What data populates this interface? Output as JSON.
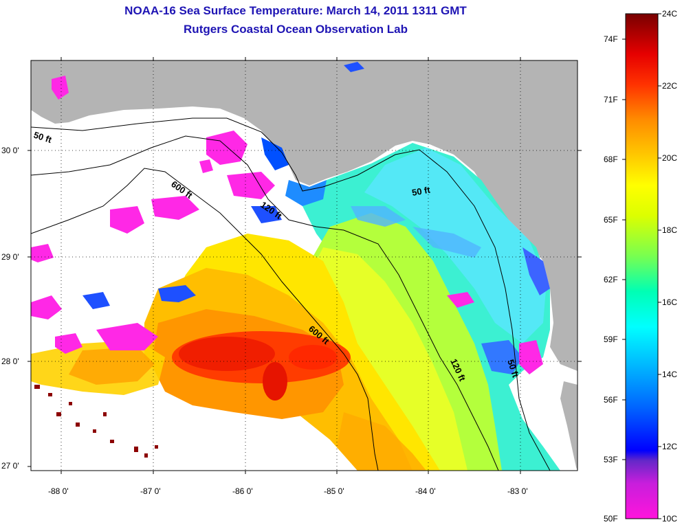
{
  "header": {
    "title": "NOAA-16 Sea Surface Temperature:  March 14, 2011 1311 GMT",
    "subtitle": "Rutgers Coastal Ocean Observation Lab"
  },
  "map": {
    "land_color": "#b4b4b4",
    "no_data_color": "#ffffff",
    "lat_labels": [
      "30 0'",
      "29 0'",
      "28 0'",
      "27 0'"
    ],
    "lon_labels": [
      "-88 0'",
      "-87 0'",
      "-86 0'",
      "-85 0'",
      "-84 0'",
      "-83 0'"
    ],
    "contour_labels": [
      "50 ft",
      "600 ft",
      "120 ft",
      "50 ft",
      "600 ft",
      "120 ft",
      "50 ft"
    ]
  },
  "colorbar": {
    "fahrenheit_labels": [
      "74F",
      "71F",
      "68F",
      "65F",
      "62F",
      "59F",
      "56F",
      "53F",
      "50F"
    ],
    "celsius_labels": [
      "24C",
      "22C",
      "20C",
      "18C",
      "16C",
      "14C",
      "12C",
      "10C"
    ],
    "range_c": [
      10,
      24
    ],
    "colors": [
      "#ff14dc",
      "#8c28c8",
      "#0000ff",
      "#0078ff",
      "#00dcff",
      "#00ffc8",
      "#a0ff50",
      "#ffff00",
      "#ffb400",
      "#ff6400",
      "#ff0000",
      "#c80000",
      "#780000"
    ]
  }
}
